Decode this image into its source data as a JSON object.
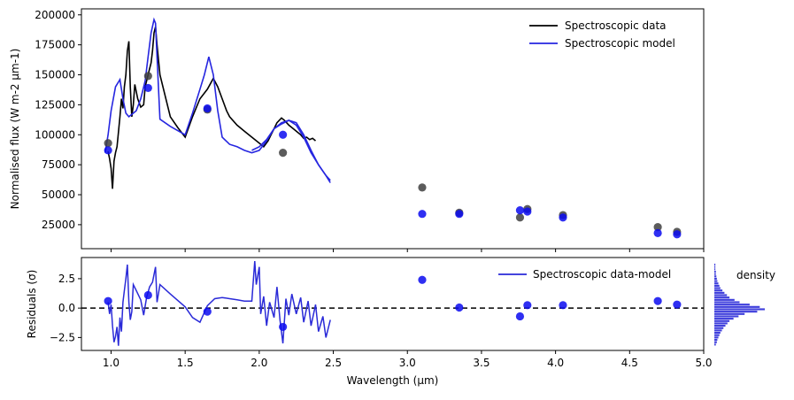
{
  "colors": {
    "data_line": "#000000",
    "model_line": "#2626e0",
    "model_point": "#0a0af0",
    "data_point": "#404040",
    "residual": "#2a2ad8",
    "zero_line": "#000000"
  },
  "chart_data": [
    {
      "type": "line",
      "panel": "top",
      "xlabel": "",
      "ylabel": "Normalised flux (W m-2 µm-1)",
      "xlim": [
        0.8,
        5.0
      ],
      "ylim": [
        5000,
        205000
      ],
      "ytick_values": [
        25000,
        50000,
        75000,
        100000,
        125000,
        150000,
        175000,
        200000
      ],
      "ytick_labels": [
        "25000",
        "50000",
        "75000",
        "100000",
        "125000",
        "150000",
        "175000",
        "200000"
      ],
      "legend_position": "top-right",
      "legend": [
        "Spectroscopic data",
        "Spectroscopic model"
      ],
      "series": [
        {
          "name": "Spectroscopic data",
          "style": "line",
          "x": [
            0.98,
            0.99,
            1.0,
            1.01,
            1.02,
            1.03,
            1.04,
            1.05,
            1.06,
            1.07,
            1.08,
            1.09,
            1.1,
            1.11,
            1.12,
            1.13,
            1.14,
            1.15,
            1.16,
            1.18,
            1.2,
            1.22,
            1.23,
            1.25,
            1.27,
            1.28,
            1.29,
            1.3,
            1.31,
            1.33,
            1.4,
            1.45,
            1.5,
            1.55,
            1.6,
            1.65,
            1.69,
            1.72,
            1.75,
            1.78,
            1.8,
            1.85,
            1.9,
            1.95,
            2.0,
            2.03,
            2.06,
            2.08,
            2.1,
            2.12,
            2.15,
            2.17,
            2.2,
            2.23,
            2.26,
            2.28,
            2.3,
            2.32,
            2.34,
            2.36,
            2.38
          ],
          "y": [
            86000,
            80000,
            72000,
            55000,
            78000,
            85000,
            90000,
            102000,
            115000,
            130000,
            122000,
            140000,
            150000,
            170000,
            178000,
            140000,
            115000,
            125000,
            142000,
            130000,
            123000,
            125000,
            140000,
            150000,
            160000,
            170000,
            185000,
            190000,
            175000,
            150000,
            115000,
            106000,
            98000,
            115000,
            130000,
            138000,
            147000,
            140000,
            130000,
            120000,
            115000,
            108000,
            103000,
            98000,
            93000,
            90000,
            95000,
            100000,
            105000,
            110000,
            114000,
            112000,
            108000,
            105000,
            102000,
            100000,
            97000,
            98000,
            96000,
            97000,
            95000
          ]
        },
        {
          "name": "Spectroscopic model",
          "style": "line",
          "x": [
            0.96,
            0.98,
            1.0,
            1.03,
            1.06,
            1.08,
            1.1,
            1.12,
            1.14,
            1.17,
            1.2,
            1.23,
            1.25,
            1.27,
            1.29,
            1.3,
            1.31,
            1.33,
            1.4,
            1.5,
            1.55,
            1.6,
            1.63,
            1.66,
            1.69,
            1.72,
            1.75,
            1.8,
            1.85,
            1.9,
            1.95,
            2.0,
            2.05,
            2.1,
            2.15,
            2.2,
            2.25,
            2.3,
            2.35,
            2.4,
            2.45,
            2.48
          ],
          "y": [
            85000,
            100000,
            120000,
            140000,
            146000,
            130000,
            118000,
            115000,
            117000,
            120000,
            130000,
            145000,
            165000,
            185000,
            196000,
            193000,
            165000,
            113000,
            107000,
            100000,
            118000,
            138000,
            150000,
            165000,
            150000,
            120000,
            98000,
            92000,
            90000,
            87000,
            85000,
            87000,
            95000,
            105000,
            110000,
            112000,
            108000,
            98000,
            85000,
            75000,
            66000,
            62000
          ]
        },
        {
          "name": "",
          "style": "line",
          "x": [
            1.95,
            2.0,
            2.05,
            2.1,
            2.15,
            2.2,
            2.25,
            2.3,
            2.35,
            2.4,
            2.45,
            2.48
          ],
          "y": [
            87000,
            90000,
            96000,
            105000,
            109000,
            112000,
            110000,
            100000,
            87000,
            75000,
            66000,
            60000
          ]
        },
        {
          "name": "",
          "style": "scatter",
          "x": [
            0.98,
            1.25,
            1.65,
            2.16,
            3.1,
            3.35,
            3.76,
            3.81,
            4.05,
            4.69,
            4.82
          ],
          "y": [
            93000,
            149000,
            121000,
            85000,
            56000,
            35000,
            31000,
            38000,
            33000,
            23000,
            19000
          ]
        },
        {
          "name": "",
          "style": "scatter",
          "x": [
            0.98,
            1.25,
            1.65,
            2.16,
            3.1,
            3.35,
            3.76,
            3.81,
            4.05,
            4.69,
            4.82
          ],
          "y": [
            87000,
            139000,
            122000,
            100000,
            34000,
            34000,
            37000,
            36000,
            31000,
            18000,
            17000
          ]
        }
      ]
    },
    {
      "type": "line",
      "panel": "bottom",
      "xlabel": "Wavelength (µm)",
      "ylabel": "Residuals (σ)",
      "xlim": [
        0.8,
        5.0
      ],
      "ylim": [
        -3.6,
        4.3
      ],
      "xtick_values": [
        1.0,
        1.5,
        2.0,
        2.5,
        3.0,
        3.5,
        4.0,
        4.5,
        5.0
      ],
      "xtick_labels": [
        "1.0",
        "1.5",
        "2.0",
        "2.5",
        "3.0",
        "3.5",
        "4.0",
        "4.5",
        "5.0"
      ],
      "ytick_values": [
        -2.5,
        0.0,
        2.5
      ],
      "ytick_labels": [
        "−2.5",
        "0.0",
        "2.5"
      ],
      "zero_line": 0.0,
      "legend_position": "top-right",
      "legend": [
        "Spectroscopic data-model"
      ],
      "series": [
        {
          "name": "Spectroscopic data-model",
          "style": "line",
          "x": [
            0.98,
            0.99,
            1.0,
            1.01,
            1.02,
            1.03,
            1.04,
            1.05,
            1.06,
            1.07,
            1.08,
            1.09,
            1.1,
            1.11,
            1.12,
            1.13,
            1.14,
            1.15,
            1.17,
            1.2,
            1.22,
            1.24,
            1.26,
            1.28,
            1.3,
            1.31,
            1.33,
            1.4,
            1.5,
            1.55,
            1.6,
            1.65,
            1.7,
            1.75,
            1.8,
            1.85,
            1.9,
            1.95,
            1.97,
            1.98,
            2.0,
            2.01,
            2.03,
            2.05,
            2.07,
            2.1,
            2.12,
            2.14,
            2.16,
            2.18,
            2.2,
            2.22,
            2.25,
            2.28,
            2.3,
            2.33,
            2.35,
            2.38,
            2.4,
            2.43,
            2.45,
            2.48
          ],
          "y": [
            0.5,
            -0.5,
            0.3,
            -1.5,
            -2.9,
            -2.4,
            -1.6,
            -3.2,
            -0.8,
            -2.0,
            0.5,
            1.5,
            2.5,
            3.7,
            0.5,
            -1.0,
            -0.3,
            2.0,
            1.5,
            0.7,
            -0.6,
            0.9,
            1.8,
            2.2,
            3.5,
            0.5,
            2.0,
            1.2,
            0.1,
            -0.8,
            -1.2,
            0.2,
            0.8,
            0.9,
            0.8,
            0.7,
            0.6,
            0.6,
            4.0,
            2.0,
            3.5,
            -0.5,
            1.0,
            -1.5,
            0.5,
            -0.8,
            1.8,
            -1.0,
            -3.0,
            0.8,
            -0.6,
            1.2,
            -0.5,
            0.9,
            -1.2,
            0.6,
            -1.5,
            0.3,
            -2.0,
            -0.7,
            -2.5,
            -1.0
          ]
        },
        {
          "name": "",
          "style": "scatter",
          "x": [
            0.98,
            1.25,
            1.65,
            2.16,
            3.1,
            3.35,
            3.76,
            3.81,
            4.05,
            4.69,
            4.82
          ],
          "y": [
            0.6,
            1.1,
            -0.3,
            -1.6,
            2.4,
            0.05,
            -0.7,
            0.25,
            0.25,
            0.6,
            0.3
          ]
        }
      ]
    },
    {
      "type": "bar",
      "panel": "side",
      "orientation": "horizontal",
      "legend": [
        "density"
      ],
      "ylim": [
        -3.6,
        4.3
      ],
      "bin_centers": [
        -3.1,
        -2.9,
        -2.7,
        -2.5,
        -2.3,
        -2.1,
        -1.9,
        -1.7,
        -1.5,
        -1.3,
        -1.1,
        -0.9,
        -0.7,
        -0.5,
        -0.3,
        -0.1,
        0.1,
        0.3,
        0.5,
        0.7,
        0.9,
        1.1,
        1.3,
        1.5,
        1.7,
        1.9,
        2.1,
        2.3,
        2.5,
        2.7,
        2.9,
        3.1,
        3.3,
        3.5,
        3.7
      ],
      "values": [
        0.03,
        0.05,
        0.06,
        0.08,
        0.1,
        0.12,
        0.15,
        0.18,
        0.22,
        0.26,
        0.3,
        0.38,
        0.48,
        0.6,
        0.85,
        1.0,
        0.9,
        0.7,
        0.5,
        0.4,
        0.3,
        0.25,
        0.2,
        0.16,
        0.12,
        0.1,
        0.08,
        0.06,
        0.05,
        0.04,
        0.03,
        0.03,
        0.02,
        0.02,
        0.02
      ]
    }
  ]
}
